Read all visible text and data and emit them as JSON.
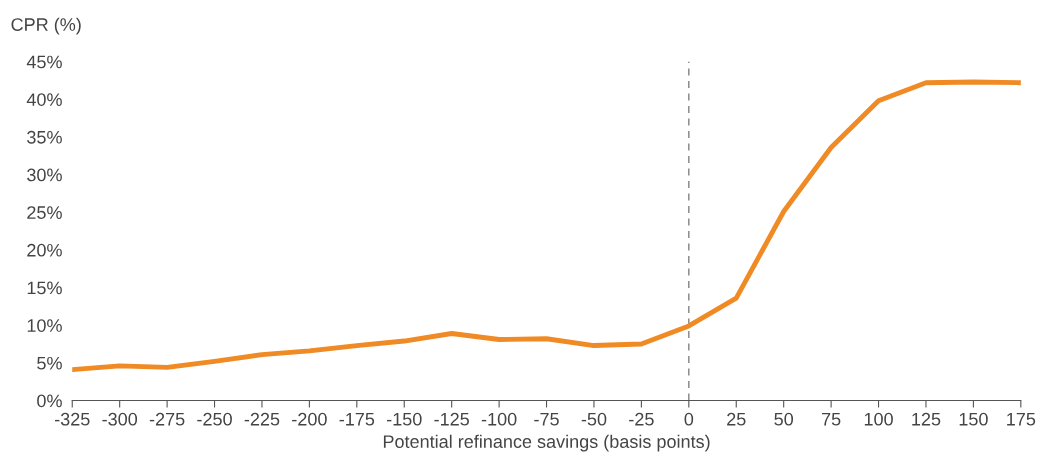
{
  "chart_data": {
    "type": "line",
    "ylabel": "CPR (%)",
    "xlabel": "Potential refinance savings (basis points)",
    "x": [
      -325,
      -300,
      -275,
      -250,
      -225,
      -200,
      -175,
      -150,
      -125,
      -100,
      -75,
      -50,
      -25,
      0,
      25,
      50,
      75,
      100,
      125,
      150,
      175
    ],
    "series": [
      {
        "color": "#f08a24",
        "values": [
          4.1,
          4.6,
          4.4,
          5.2,
          6.1,
          6.6,
          7.3,
          7.9,
          8.9,
          8.1,
          8.2,
          7.3,
          7.5,
          9.9,
          13.6,
          25.1,
          33.6,
          39.8,
          42.2,
          42.3,
          42.2
        ]
      }
    ],
    "xlim": [
      -325,
      175
    ],
    "xticks": [
      -325,
      -300,
      -275,
      -250,
      -225,
      -200,
      -175,
      -150,
      -125,
      -100,
      -75,
      -50,
      -25,
      0,
      25,
      50,
      75,
      100,
      125,
      150,
      175
    ],
    "ylim": [
      0,
      45
    ],
    "yticks": [
      {
        "value": 0,
        "label": "0%"
      },
      {
        "value": 5,
        "label": "5%"
      },
      {
        "value": 10,
        "label": "10%"
      },
      {
        "value": 15,
        "label": "15%"
      },
      {
        "value": 20,
        "label": "20%"
      },
      {
        "value": 25,
        "label": "25%"
      },
      {
        "value": 30,
        "label": "30%"
      },
      {
        "value": 35,
        "label": "35%"
      },
      {
        "value": 40,
        "label": "40%"
      },
      {
        "value": 45,
        "label": "45%"
      }
    ],
    "ref_lines": [
      {
        "axis": "x",
        "value": 0,
        "color": "#808080",
        "line_style": "dashed"
      }
    ],
    "grid": false,
    "legend": false
  }
}
